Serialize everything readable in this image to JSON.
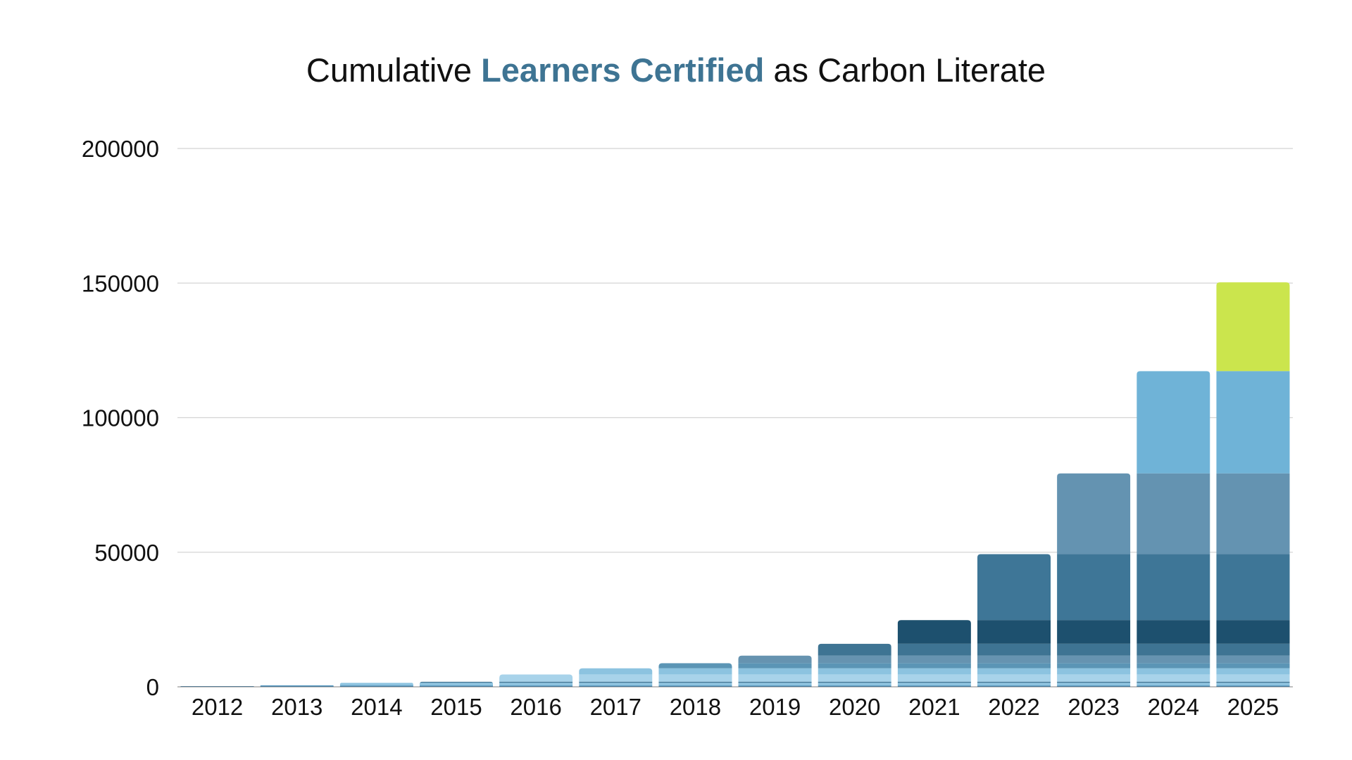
{
  "title": {
    "pre": "Cumulative ",
    "highlight": "Learners Certified",
    "post": " as Carbon Literate",
    "highlight_color": "#3e7493"
  },
  "chart_data": {
    "type": "bar",
    "stacked": true,
    "categories": [
      "2012",
      "2013",
      "2014",
      "2015",
      "2016",
      "2017",
      "2018",
      "2019",
      "2020",
      "2021",
      "2022",
      "2023",
      "2024",
      "2025"
    ],
    "yticks": [
      "0",
      "50000",
      "100000",
      "150000",
      "200000"
    ],
    "ylim": [
      0,
      200000
    ],
    "grid": true,
    "legend": "none",
    "xlabel": "",
    "ylabel": "",
    "layers": [
      {
        "year": "2012",
        "value": 200,
        "color": "#2c5b7b"
      },
      {
        "year": "2013",
        "value": 400,
        "color": "#5f9ec4"
      },
      {
        "year": "2014",
        "value": 900,
        "color": "#8cc3e0"
      },
      {
        "year": "2015",
        "value": 400,
        "color": "#3e7493"
      },
      {
        "year": "2016",
        "value": 2700,
        "color": "#a8d3ea"
      },
      {
        "year": "2017",
        "value": 2300,
        "color": "#8cc3e0"
      },
      {
        "year": "2018",
        "value": 1900,
        "color": "#5b95b5"
      },
      {
        "year": "2019",
        "value": 2800,
        "color": "#6693b0"
      },
      {
        "year": "2020",
        "value": 4400,
        "color": "#3e7493"
      },
      {
        "year": "2021",
        "value": 8800,
        "color": "#1d506e"
      },
      {
        "year": "2022",
        "value": 24500,
        "color": "#3e7697"
      },
      {
        "year": "2023",
        "value": 30000,
        "color": "#6493b1"
      },
      {
        "year": "2024",
        "value": 38000,
        "color": "#6fb3d7"
      },
      {
        "year": "2025",
        "value": 33000,
        "color": "#cbe54d"
      }
    ],
    "totals": [
      200,
      600,
      1500,
      1900,
      4600,
      6900,
      8800,
      11600,
      16000,
      24800,
      49300,
      79300,
      117300,
      150300
    ]
  }
}
